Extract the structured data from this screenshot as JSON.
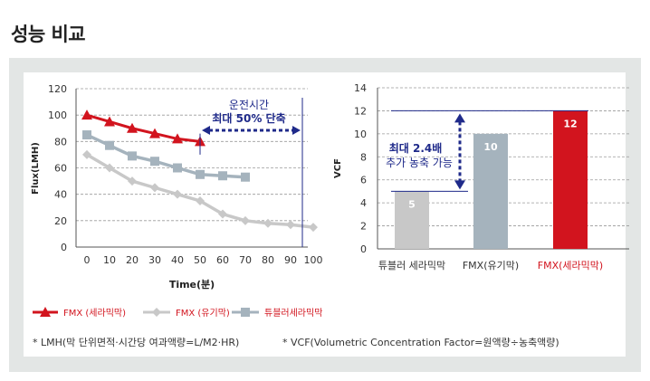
{
  "page": {
    "title": "성능 비교"
  },
  "chart_data": [
    {
      "type": "line",
      "xlabel": "Time(분)",
      "ylabel": "Flux(LMH)",
      "xlim": [
        0,
        100
      ],
      "ylim": [
        0,
        120
      ],
      "x_ticks": [
        0,
        10,
        20,
        30,
        40,
        50,
        60,
        70,
        80,
        90,
        100
      ],
      "y_ticks": [
        0,
        20,
        40,
        60,
        80,
        100,
        120
      ],
      "grid": "horizontal dashed",
      "series": [
        {
          "name": "FMX (세라믹막)",
          "color": "#d2141e",
          "marker": "triangle",
          "x": [
            0,
            10,
            20,
            30,
            40,
            50
          ],
          "y": [
            100,
            95,
            90,
            86,
            82,
            80
          ]
        },
        {
          "name": "FMX (유기막)",
          "color": "#c8c8c8",
          "marker": "diamond",
          "x": [
            0,
            10,
            20,
            30,
            40,
            50,
            60,
            70,
            80,
            90,
            100
          ],
          "y": [
            70,
            60,
            50,
            45,
            40,
            35,
            25,
            20,
            18,
            17,
            15
          ]
        },
        {
          "name": "튜블러세라믹막",
          "color": "#a5b3bd",
          "marker": "square",
          "x": [
            0,
            10,
            20,
            30,
            40,
            50,
            60,
            70
          ],
          "y": [
            85,
            77,
            69,
            65,
            60,
            55,
            54,
            53
          ]
        }
      ],
      "annotation": {
        "line1": "운전시간",
        "line2": "최대 50% 단축",
        "from_x": 50,
        "to_x": 100,
        "y": 85
      }
    },
    {
      "type": "bar",
      "ylabel": "VCF",
      "ylim": [
        0,
        14
      ],
      "y_ticks": [
        0,
        2,
        4,
        6,
        8,
        10,
        12,
        14
      ],
      "grid": "horizontal dashed",
      "categories": [
        "튜블러 세라믹막",
        "FMX(유기막)",
        "FMX(세라믹막)"
      ],
      "values": [
        5,
        10,
        12
      ],
      "value_labels": [
        "5",
        "10",
        "12"
      ],
      "colors": [
        "#c8c8c8",
        "#a5b3bd",
        "#d2141e"
      ],
      "label_colors": [
        "#333333",
        "#333333",
        "#d2141e"
      ],
      "annotation": {
        "line1": "최대 2.4배",
        "line2": "추가 농축 가능",
        "from": 5,
        "to": 12
      }
    }
  ],
  "legend": [
    "FMX (세라믹막)",
    "FMX (유기막)",
    "튜블러세라믹막"
  ],
  "notes": {
    "lmh": "* LMH(막 단위면적·시간당 여과액량=L/M2·HR)",
    "vcf": "* VCF(Volumetric Concentration Factor=원액량÷농축액량)"
  }
}
